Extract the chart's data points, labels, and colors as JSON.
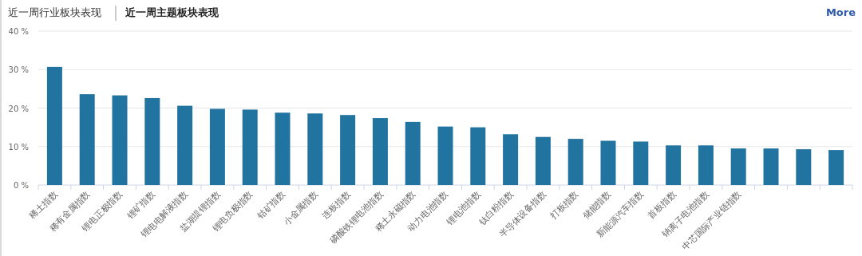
{
  "chart_data": {
    "type": "bar",
    "title": "近一周主题板块表现",
    "subtitle": "近一周行业板块表现",
    "annotations": [
      "More"
    ],
    "categories": [
      "稀土指数",
      "稀有金属指数",
      "锂电正极指数",
      "锂矿指数",
      "锂电电解液指数",
      "盐湖提锂指数",
      "锂电负极指数",
      "钴矿指数",
      "小金属指数",
      "连板指数",
      "磷酸铁锂电池指数",
      "稀土永磁指数",
      "动力电池指数",
      "锂电池指数",
      "钛白粉指数",
      "半导体设备指数",
      "打板指数",
      "储能指数",
      "新能源汽车指数",
      "首板指数",
      "钠离子电池指数",
      "中芯国际产业链指数",
      null,
      null,
      null
    ],
    "values": [
      30.7,
      23.6,
      23.3,
      22.6,
      20.6,
      19.8,
      19.6,
      18.8,
      18.6,
      18.2,
      17.4,
      16.4,
      15.2,
      15.0,
      13.2,
      12.5,
      12.0,
      11.5,
      11.3,
      10.3,
      10.3,
      9.5,
      9.5,
      9.3,
      9.1
    ],
    "color": "#2274a0",
    "ylim": [
      0,
      40
    ],
    "yticks": [
      {
        "value": 0,
        "label": "0 %"
      },
      {
        "value": 10,
        "label": "10 %"
      },
      {
        "value": 20,
        "label": "20 %"
      },
      {
        "value": 30,
        "label": "30 %"
      },
      {
        "value": 40,
        "label": "40 %"
      }
    ],
    "grid": "y"
  }
}
